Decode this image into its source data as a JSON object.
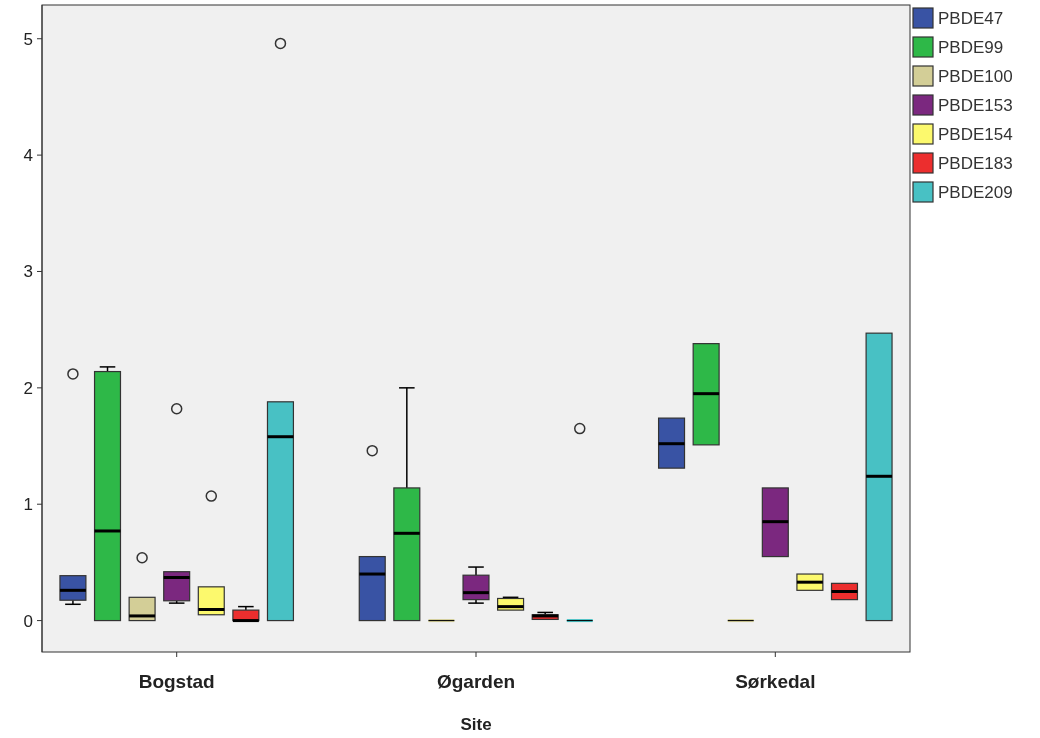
{
  "chart_data": {
    "type": "box",
    "xlabel": "Site",
    "categories": [
      "Bogstad",
      "Øgarden",
      "Sørkedal"
    ],
    "ylim": [
      -0.27,
      5.29
    ],
    "yticks": [
      0,
      1,
      2,
      3,
      4,
      5
    ],
    "grid": false,
    "legend": "top right",
    "series": [
      {
        "name": "PBDE47",
        "color": "#3953a4",
        "boxes": [
          {
            "low": 0.14,
            "q1": 0.175,
            "median": 0.26,
            "q3": 0.386,
            "high": 0.386,
            "outliers": [
              2.12
            ]
          },
          {
            "low": 0,
            "q1": 0,
            "median": 0.4,
            "q3": 0.55,
            "high": 0.55,
            "outliers": [
              1.46
            ]
          },
          {
            "low": 1.31,
            "q1": 1.31,
            "median": 1.52,
            "q3": 1.74,
            "high": 1.74
          }
        ]
      },
      {
        "name": "PBDE99",
        "color": "#2eb848",
        "boxes": [
          {
            "low": 0,
            "q1": 0,
            "median": 0.77,
            "q3": 2.14,
            "high": 2.18
          },
          {
            "low": 0,
            "q1": 0,
            "median": 0.75,
            "q3": 1.14,
            "high": 2.0
          },
          {
            "low": 1.51,
            "q1": 1.51,
            "median": 1.95,
            "q3": 2.38,
            "high": 2.38
          }
        ]
      },
      {
        "name": "PBDE100",
        "color": "#d3ce97",
        "boxes": [
          {
            "low": 0,
            "q1": 0,
            "median": 0.04,
            "q3": 0.2,
            "high": 0.2,
            "outliers": [
              0.54
            ]
          },
          {
            "low": 0,
            "q1": 0,
            "median": 0,
            "q3": 0,
            "high": 0
          },
          {
            "low": 0,
            "q1": 0,
            "median": 0,
            "q3": 0,
            "high": 0
          }
        ]
      },
      {
        "name": "PBDE153",
        "color": "#7b287f",
        "boxes": [
          {
            "low": 0.15,
            "q1": 0.17,
            "median": 0.37,
            "q3": 0.42,
            "high": 0.42,
            "outliers": [
              1.82
            ]
          },
          {
            "low": 0.15,
            "q1": 0.18,
            "median": 0.24,
            "q3": 0.39,
            "high": 0.46
          },
          {
            "low": 0.55,
            "q1": 0.55,
            "median": 0.85,
            "q3": 1.14,
            "high": 1.14
          }
        ]
      },
      {
        "name": "PBDE154",
        "color": "#fcf96d",
        "boxes": [
          {
            "low": 0.05,
            "q1": 0.05,
            "median": 0.095,
            "q3": 0.29,
            "high": 0.29,
            "outliers": [
              1.07
            ]
          },
          {
            "low": 0.09,
            "q1": 0.09,
            "median": 0.12,
            "q3": 0.19,
            "high": 0.2
          },
          {
            "low": 0.26,
            "q1": 0.26,
            "median": 0.33,
            "q3": 0.4,
            "high": 0.4
          }
        ]
      },
      {
        "name": "PBDE183",
        "color": "#ec2e2e",
        "boxes": [
          {
            "low": 0,
            "q1": 0,
            "median": 0,
            "q3": 0.09,
            "high": 0.12
          },
          {
            "low": 0.01,
            "q1": 0.01,
            "median": 0.04,
            "q3": 0.05,
            "high": 0.07
          },
          {
            "low": 0.18,
            "q1": 0.18,
            "median": 0.25,
            "q3": 0.32,
            "high": 0.32
          }
        ]
      },
      {
        "name": "PBDE209",
        "color": "#48c1c4",
        "boxes": [
          {
            "low": 0,
            "q1": 0,
            "median": 1.58,
            "q3": 1.88,
            "high": 1.88,
            "outliers": [
              4.96
            ]
          },
          {
            "low": 0,
            "q1": 0,
            "median": 0,
            "q3": 0,
            "high": 0,
            "outliers": [
              1.65
            ]
          },
          {
            "low": 0,
            "q1": 0,
            "median": 1.24,
            "q3": 2.47,
            "high": 2.47
          }
        ]
      }
    ]
  }
}
